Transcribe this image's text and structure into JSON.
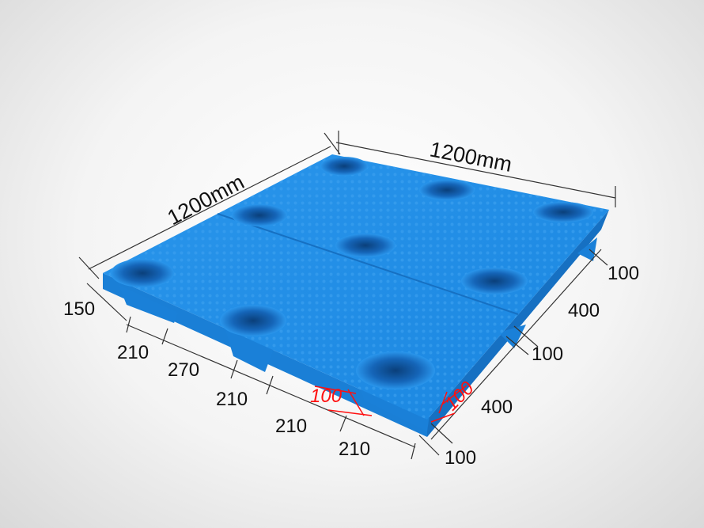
{
  "product": "plastic pallet",
  "colors": {
    "pallet": "#1e8fe6",
    "dimension_line": "#333333",
    "highlight": "#ff1010"
  },
  "dimensions": {
    "length_left": "1200mm",
    "length_right": "1200mm",
    "height": "150",
    "front_edge": [
      "210",
      "270",
      "210",
      "210",
      "210"
    ],
    "right_edge": [
      "100",
      "400",
      "100",
      "400",
      "100"
    ],
    "foot_chamfer_left": "100",
    "foot_chamfer_right": "100"
  }
}
